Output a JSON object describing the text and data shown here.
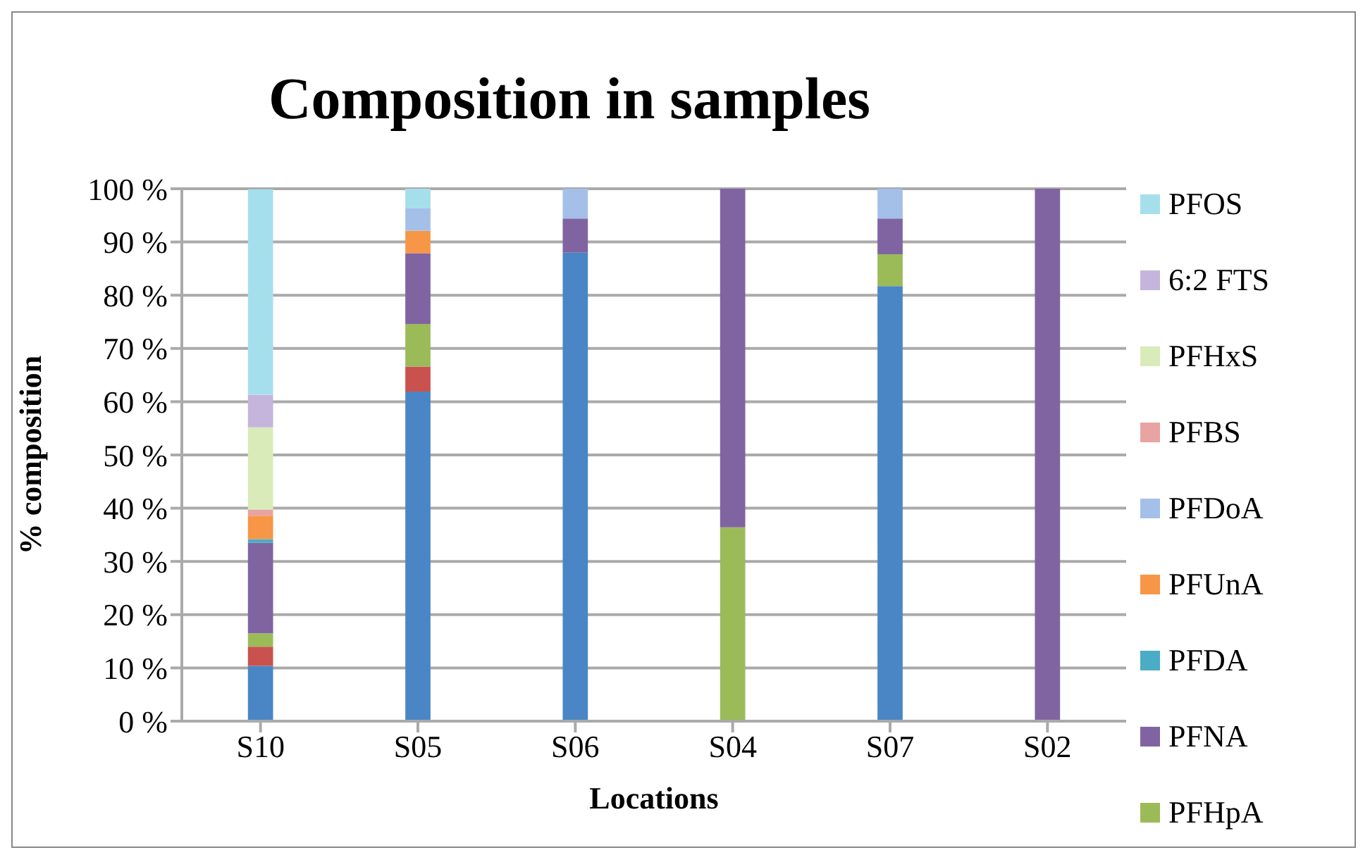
{
  "chart_data": {
    "type": "bar",
    "stacked": true,
    "title": "Composition in samples",
    "xlabel": "Locations",
    "ylabel": "% composition",
    "categories": [
      "S10",
      "S05",
      "S06",
      "S04",
      "S07",
      "S02"
    ],
    "series": [
      {
        "color": "#4a86c5",
        "values": [
          10.4,
          61.9,
          88.0,
          0,
          81.7,
          0
        ]
      },
      {
        "color": "#c9524f",
        "values": [
          3.6,
          4.7,
          0,
          0,
          0,
          0
        ]
      },
      {
        "name": "PFHpA",
        "color": "#9bbb59",
        "values": [
          2.5,
          8.0,
          0,
          36.4,
          6.0,
          0
        ]
      },
      {
        "name": "PFNA",
        "color": "#8064a2",
        "values": [
          17.0,
          13.3,
          6.4,
          63.6,
          6.7,
          100
        ]
      },
      {
        "name": "PFDA",
        "color": "#4bacc6",
        "values": [
          0.7,
          0,
          0,
          0,
          0,
          0
        ]
      },
      {
        "name": "PFUnA",
        "color": "#f79646",
        "values": [
          4.4,
          4.2,
          0,
          0,
          0,
          0
        ]
      },
      {
        "name": "PFDoA",
        "color": "#a4c0e8",
        "values": [
          0,
          4.2,
          5.6,
          0,
          5.6,
          0
        ]
      },
      {
        "name": "PFBS",
        "color": "#e8a3a3",
        "values": [
          1.1,
          0,
          0,
          0,
          0,
          0
        ]
      },
      {
        "name": "PFHxS",
        "color": "#d9ebb8",
        "values": [
          15.5,
          0,
          0,
          0,
          0,
          0
        ]
      },
      {
        "name": "6:2 FTS",
        "color": "#c5b5dc",
        "values": [
          6.1,
          0,
          0,
          0,
          0,
          0
        ]
      },
      {
        "name": "PFOS",
        "color": "#a6dfec",
        "values": [
          38.6,
          3.7,
          0,
          0,
          0,
          0
        ]
      }
    ],
    "ylim": [
      0,
      100
    ],
    "yticks": [
      {
        "value": 0,
        "label": "0 %"
      },
      {
        "value": 10,
        "label": "10 %"
      },
      {
        "value": 20,
        "label": "20 %"
      },
      {
        "value": 30,
        "label": "30 %"
      },
      {
        "value": 40,
        "label": "40 %"
      },
      {
        "value": 50,
        "label": "50 %"
      },
      {
        "value": 60,
        "label": "60 %"
      },
      {
        "value": 70,
        "label": "70 %"
      },
      {
        "value": 80,
        "label": "80 %"
      },
      {
        "value": 90,
        "label": "90 %"
      },
      {
        "value": 100,
        "label": "100 %"
      }
    ],
    "grid": "y",
    "legend": "right"
  }
}
